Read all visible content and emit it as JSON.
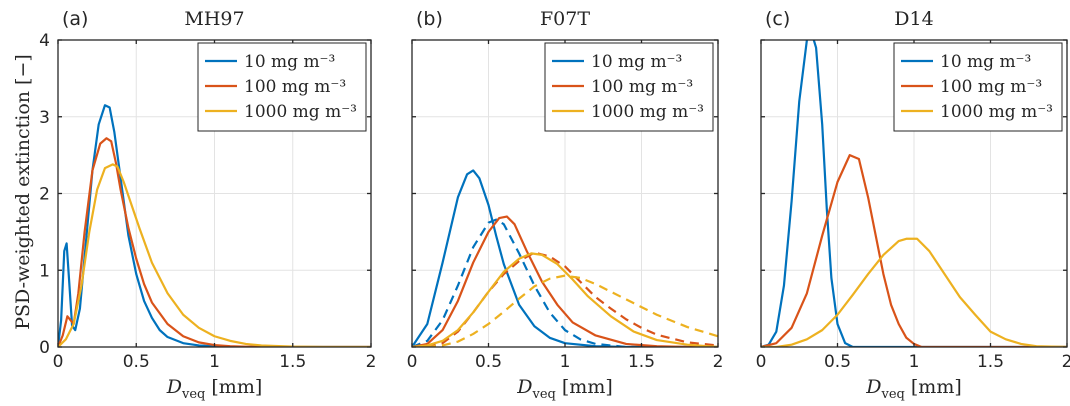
{
  "figure": {
    "ylabel": "PSD-weighted extinction [−]",
    "xlabel_prefix": "D",
    "xlabel_sub": "veq",
    "xlabel_unit": "[mm]"
  },
  "chart_data": [
    {
      "type": "line",
      "panel": "(a)",
      "title": "MH97",
      "xlim": [
        0,
        2
      ],
      "ylim": [
        0,
        4
      ],
      "xticks": [
        0,
        0.5,
        1,
        1.5,
        2
      ],
      "xtick_labels": [
        "0",
        "0.5",
        "1",
        "1.5",
        "2"
      ],
      "yticks": [
        0,
        1,
        2,
        3,
        4
      ],
      "ytick_labels": [
        "0",
        "1",
        "2",
        "3",
        "4"
      ],
      "show_yticklabels": true,
      "grid": true,
      "legend_position": "top-right",
      "series": [
        {
          "name": "10 mg m⁻³",
          "color": "#0072BD",
          "dash": false,
          "x": [
            0.0,
            0.02,
            0.04,
            0.055,
            0.07,
            0.09,
            0.11,
            0.14,
            0.18,
            0.22,
            0.26,
            0.3,
            0.33,
            0.36,
            0.4,
            0.45,
            0.5,
            0.55,
            0.6,
            0.65,
            0.7,
            0.8,
            0.9,
            1.0,
            1.1,
            1.2,
            1.4,
            2.0
          ],
          "y": [
            0.0,
            0.35,
            1.25,
            1.35,
            0.9,
            0.28,
            0.22,
            0.5,
            1.4,
            2.3,
            2.9,
            3.15,
            3.12,
            2.8,
            2.2,
            1.45,
            0.95,
            0.6,
            0.38,
            0.22,
            0.13,
            0.05,
            0.02,
            0.008,
            0.003,
            0.0,
            0.0,
            0.0
          ]
        },
        {
          "name": "100 mg m⁻³",
          "color": "#D95319",
          "dash": false,
          "x": [
            0.0,
            0.03,
            0.06,
            0.08,
            0.1,
            0.13,
            0.17,
            0.22,
            0.27,
            0.31,
            0.34,
            0.37,
            0.4,
            0.45,
            0.5,
            0.55,
            0.6,
            0.7,
            0.8,
            0.9,
            1.0,
            1.1,
            1.2,
            1.4,
            2.0
          ],
          "y": [
            0.0,
            0.15,
            0.4,
            0.35,
            0.3,
            0.7,
            1.5,
            2.3,
            2.65,
            2.72,
            2.68,
            2.4,
            2.05,
            1.55,
            1.15,
            0.82,
            0.58,
            0.3,
            0.14,
            0.06,
            0.025,
            0.01,
            0.004,
            0.0,
            0.0
          ]
        },
        {
          "name": "1000 mg m⁻³",
          "color": "#EDB120",
          "dash": false,
          "x": [
            0.0,
            0.05,
            0.1,
            0.15,
            0.2,
            0.25,
            0.3,
            0.35,
            0.38,
            0.42,
            0.47,
            0.52,
            0.6,
            0.7,
            0.8,
            0.9,
            1.0,
            1.1,
            1.2,
            1.3,
            1.5,
            1.7,
            2.0
          ],
          "y": [
            0.0,
            0.1,
            0.3,
            0.8,
            1.5,
            2.05,
            2.33,
            2.38,
            2.35,
            2.15,
            1.85,
            1.55,
            1.1,
            0.7,
            0.42,
            0.25,
            0.14,
            0.08,
            0.04,
            0.02,
            0.005,
            0.0,
            0.0
          ]
        }
      ]
    },
    {
      "type": "line",
      "panel": "(b)",
      "title": "F07T",
      "xlim": [
        0,
        2
      ],
      "ylim": [
        0,
        4
      ],
      "xticks": [
        0,
        0.5,
        1,
        1.5,
        2
      ],
      "xtick_labels": [
        "0",
        "0.5",
        "1",
        "1.5",
        "2"
      ],
      "yticks": [
        0,
        1,
        2,
        3,
        4
      ],
      "ytick_labels": [
        "0",
        "1",
        "2",
        "3",
        "4"
      ],
      "show_yticklabels": false,
      "grid": true,
      "legend_position": "top-right",
      "series": [
        {
          "name": "10 mg m⁻³",
          "color": "#0072BD",
          "dash": false,
          "x": [
            0.0,
            0.1,
            0.2,
            0.3,
            0.36,
            0.4,
            0.44,
            0.5,
            0.55,
            0.6,
            0.7,
            0.8,
            0.9,
            1.0,
            1.2,
            1.4,
            1.6,
            2.0
          ],
          "y": [
            0.0,
            0.3,
            1.1,
            1.95,
            2.25,
            2.3,
            2.2,
            1.85,
            1.45,
            1.08,
            0.55,
            0.27,
            0.12,
            0.05,
            0.01,
            0.0,
            0.0,
            0.0
          ]
        },
        {
          "name": "",
          "color": "#0072BD",
          "dash": true,
          "x": [
            0.0,
            0.1,
            0.2,
            0.3,
            0.4,
            0.5,
            0.55,
            0.6,
            0.7,
            0.8,
            0.9,
            1.0,
            1.1,
            1.2,
            1.4,
            1.6,
            2.0
          ],
          "y": [
            0.0,
            0.08,
            0.35,
            0.8,
            1.3,
            1.62,
            1.66,
            1.6,
            1.22,
            0.8,
            0.45,
            0.22,
            0.1,
            0.04,
            0.0,
            0.0,
            0.0
          ]
        },
        {
          "name": "100 mg m⁻³",
          "color": "#D95319",
          "dash": false,
          "x": [
            0.0,
            0.1,
            0.2,
            0.3,
            0.4,
            0.5,
            0.57,
            0.62,
            0.67,
            0.75,
            0.85,
            0.95,
            1.05,
            1.2,
            1.4,
            1.6,
            1.8,
            2.0
          ],
          "y": [
            0.0,
            0.04,
            0.22,
            0.6,
            1.1,
            1.5,
            1.68,
            1.7,
            1.6,
            1.25,
            0.85,
            0.55,
            0.32,
            0.15,
            0.04,
            0.01,
            0.0,
            0.0
          ]
        },
        {
          "name": "",
          "color": "#D95319",
          "dash": true,
          "x": [
            0.0,
            0.1,
            0.2,
            0.3,
            0.4,
            0.5,
            0.6,
            0.7,
            0.8,
            0.9,
            1.0,
            1.1,
            1.2,
            1.3,
            1.4,
            1.5,
            1.6,
            1.8,
            2.0
          ],
          "y": [
            0.0,
            0.0,
            0.05,
            0.2,
            0.45,
            0.72,
            0.95,
            1.12,
            1.23,
            1.18,
            1.05,
            0.85,
            0.65,
            0.5,
            0.36,
            0.25,
            0.16,
            0.06,
            0.02
          ]
        },
        {
          "name": "1000 mg m⁻³",
          "color": "#EDB120",
          "dash": false,
          "x": [
            0.0,
            0.1,
            0.2,
            0.3,
            0.4,
            0.5,
            0.6,
            0.7,
            0.78,
            0.85,
            0.95,
            1.05,
            1.15,
            1.3,
            1.45,
            1.6,
            1.8,
            2.0
          ],
          "y": [
            0.0,
            0.02,
            0.08,
            0.22,
            0.45,
            0.72,
            0.98,
            1.15,
            1.22,
            1.2,
            1.08,
            0.88,
            0.66,
            0.4,
            0.2,
            0.09,
            0.03,
            0.0
          ]
        },
        {
          "name": "",
          "color": "#EDB120",
          "dash": true,
          "x": [
            0.0,
            0.1,
            0.2,
            0.3,
            0.4,
            0.5,
            0.6,
            0.7,
            0.8,
            0.9,
            1.0,
            1.1,
            1.2,
            1.4,
            1.6,
            1.8,
            2.0
          ],
          "y": [
            0.0,
            0.0,
            0.02,
            0.07,
            0.17,
            0.3,
            0.46,
            0.63,
            0.79,
            0.89,
            0.93,
            0.9,
            0.82,
            0.62,
            0.42,
            0.26,
            0.14
          ]
        }
      ]
    },
    {
      "type": "line",
      "panel": "(c)",
      "title": "D14",
      "xlim": [
        0,
        2
      ],
      "ylim": [
        0,
        4
      ],
      "xticks": [
        0,
        0.5,
        1,
        1.5,
        2
      ],
      "xtick_labels": [
        "0",
        "0.5",
        "1",
        "1.5",
        "2"
      ],
      "yticks": [
        0,
        1,
        2,
        3,
        4
      ],
      "ytick_labels": [
        "0",
        "1",
        "2",
        "3",
        "4"
      ],
      "show_yticklabels": false,
      "grid": true,
      "legend_position": "top-right",
      "series": [
        {
          "name": "10 mg m⁻³",
          "color": "#0072BD",
          "dash": false,
          "x": [
            0.0,
            0.05,
            0.1,
            0.15,
            0.2,
            0.25,
            0.3,
            0.33,
            0.36,
            0.4,
            0.43,
            0.46,
            0.5,
            0.55,
            0.6,
            2.0
          ],
          "y": [
            0.0,
            0.03,
            0.2,
            0.8,
            1.9,
            3.2,
            4.0,
            4.1,
            3.9,
            2.9,
            1.8,
            0.9,
            0.3,
            0.05,
            0.0,
            0.0
          ]
        },
        {
          "name": "100 mg m⁻³",
          "color": "#D95319",
          "dash": false,
          "x": [
            0.0,
            0.1,
            0.2,
            0.3,
            0.4,
            0.5,
            0.58,
            0.64,
            0.7,
            0.75,
            0.8,
            0.85,
            0.9,
            0.95,
            1.0,
            1.05,
            1.1,
            2.0
          ],
          "y": [
            0.0,
            0.05,
            0.25,
            0.7,
            1.45,
            2.15,
            2.5,
            2.45,
            1.95,
            1.45,
            0.95,
            0.55,
            0.3,
            0.12,
            0.04,
            0.0,
            0.0,
            0.0
          ]
        },
        {
          "name": "1000 mg m⁻³",
          "color": "#EDB120",
          "dash": false,
          "x": [
            0.0,
            0.1,
            0.2,
            0.3,
            0.4,
            0.5,
            0.6,
            0.7,
            0.8,
            0.9,
            0.95,
            1.02,
            1.1,
            1.2,
            1.3,
            1.4,
            1.5,
            1.6,
            1.7,
            1.8,
            2.0
          ],
          "y": [
            0.0,
            0.0,
            0.03,
            0.1,
            0.22,
            0.42,
            0.68,
            0.95,
            1.2,
            1.38,
            1.41,
            1.41,
            1.25,
            0.95,
            0.65,
            0.42,
            0.2,
            0.1,
            0.04,
            0.01,
            0.0
          ]
        }
      ]
    }
  ]
}
